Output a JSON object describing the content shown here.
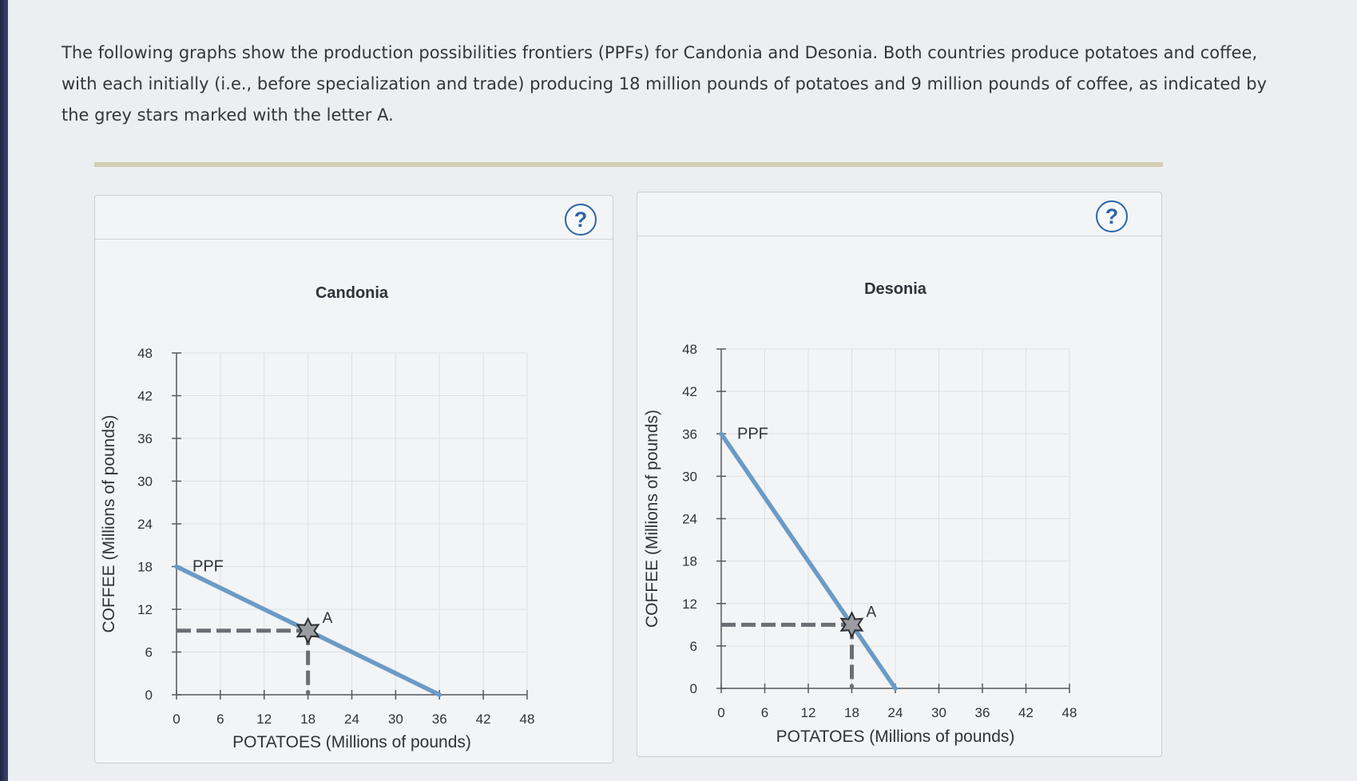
{
  "intro_text": "The following graphs show the production possibilities frontiers (PPFs) for Candonia and Desonia. Both countries produce potatoes and coffee, with each initially (i.e., before specialization and trade) producing 18 million pounds of potatoes and 9 million pounds of coffee, as indicated by the grey stars marked with the letter A.",
  "help_label": "?",
  "colors": {
    "ppf_line": "#6a9bc6",
    "grid": "#dddfe3",
    "axis": "#55585e",
    "dashed": "#6b6e73",
    "star": "#9a9ca1"
  },
  "chart_data": [
    {
      "type": "line",
      "title": "Candonia",
      "xlabel": "POTATOES (Millions of pounds)",
      "ylabel": "COFFEE (Millions of pounds)",
      "xlim": [
        0,
        48
      ],
      "ylim": [
        0,
        48
      ],
      "xticks": [
        "0",
        "6",
        "12",
        "18",
        "24",
        "30",
        "36",
        "42",
        "48"
      ],
      "yticks": [
        "0",
        "6",
        "12",
        "18",
        "24",
        "30",
        "36",
        "42",
        "48"
      ],
      "grid": true,
      "series": [
        {
          "name": "PPF",
          "x": [
            0,
            36
          ],
          "y": [
            18,
            0
          ]
        }
      ],
      "point": {
        "label": "A",
        "x": 18,
        "y": 9
      }
    },
    {
      "type": "line",
      "title": "Desonia",
      "xlabel": "POTATOES (Millions of pounds)",
      "ylabel": "COFFEE (Millions of pounds)",
      "xlim": [
        0,
        48
      ],
      "ylim": [
        0,
        48
      ],
      "xticks": [
        "0",
        "6",
        "12",
        "18",
        "24",
        "30",
        "36",
        "42",
        "48"
      ],
      "yticks": [
        "0",
        "6",
        "12",
        "18",
        "24",
        "30",
        "36",
        "42",
        "48"
      ],
      "grid": true,
      "series": [
        {
          "name": "PPF",
          "x": [
            0,
            24
          ],
          "y": [
            36,
            0
          ]
        }
      ],
      "point": {
        "label": "A",
        "x": 18,
        "y": 9
      }
    }
  ]
}
